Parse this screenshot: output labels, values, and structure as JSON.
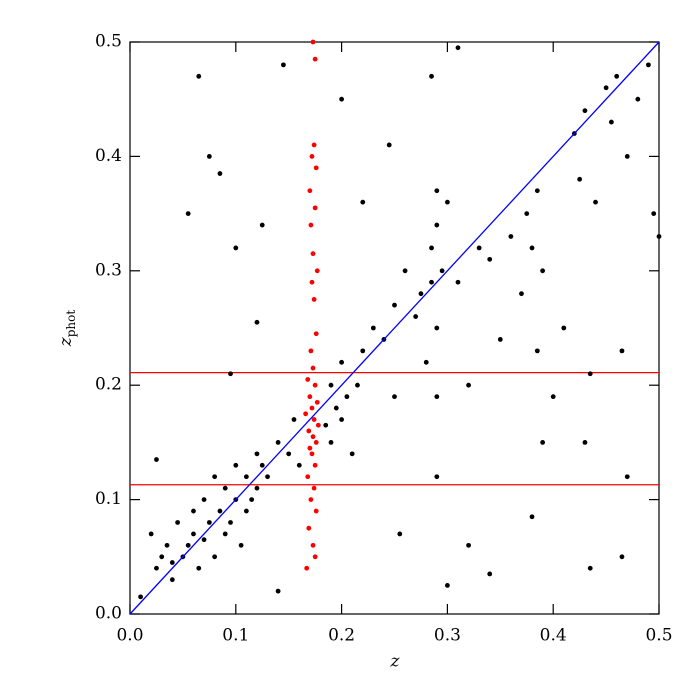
{
  "chart_data": {
    "type": "scatter",
    "xlabel": "z",
    "ylabel": "z",
    "ylabel_sub": "phot",
    "xlim": [
      0,
      0.5
    ],
    "ylim": [
      0,
      0.5
    ],
    "xticks": [
      {
        "value": 0,
        "label": "0.0"
      },
      0.1,
      0.2,
      0.3,
      0.4,
      0.5
    ],
    "yticks": [
      {
        "value": 0,
        "label": "0.0"
      },
      0.1,
      0.2,
      0.3,
      0.4,
      0.5
    ],
    "series": [
      {
        "color": "#000000",
        "x": [
          0.01,
          0.02,
          0.025,
          0.03,
          0.035,
          0.04,
          0.04,
          0.045,
          0.05,
          0.055,
          0.06,
          0.06,
          0.065,
          0.07,
          0.07,
          0.075,
          0.08,
          0.08,
          0.085,
          0.09,
          0.09,
          0.095,
          0.1,
          0.1,
          0.105,
          0.11,
          0.11,
          0.115,
          0.12,
          0.12,
          0.125,
          0.13,
          0.14,
          0.15,
          0.155,
          0.16,
          0.185,
          0.19,
          0.19,
          0.195,
          0.2,
          0.2,
          0.205,
          0.21,
          0.215,
          0.22,
          0.23,
          0.24,
          0.25,
          0.25,
          0.26,
          0.27,
          0.275,
          0.28,
          0.285,
          0.285,
          0.29,
          0.29,
          0.29,
          0.29,
          0.295,
          0.3,
          0.31,
          0.32,
          0.33,
          0.34,
          0.35,
          0.36,
          0.37,
          0.375,
          0.38,
          0.385,
          0.385,
          0.39,
          0.39,
          0.4,
          0.41,
          0.42,
          0.425,
          0.43,
          0.435,
          0.44,
          0.45,
          0.455,
          0.46,
          0.465,
          0.47,
          0.48,
          0.49,
          0.495,
          0.5,
          0.065,
          0.075,
          0.085,
          0.055,
          0.1,
          0.125,
          0.12,
          0.145,
          0.2,
          0.22,
          0.255,
          0.29,
          0.3,
          0.34,
          0.38,
          0.435,
          0.465,
          0.47,
          0.43,
          0.095,
          0.285,
          0.31,
          0.245,
          0.14,
          0.025,
          0.32
        ],
        "y": [
          0.015,
          0.07,
          0.04,
          0.05,
          0.06,
          0.03,
          0.045,
          0.08,
          0.05,
          0.06,
          0.07,
          0.09,
          0.04,
          0.065,
          0.1,
          0.08,
          0.05,
          0.12,
          0.09,
          0.07,
          0.11,
          0.08,
          0.1,
          0.13,
          0.06,
          0.09,
          0.12,
          0.1,
          0.11,
          0.14,
          0.13,
          0.12,
          0.15,
          0.14,
          0.17,
          0.13,
          0.165,
          0.2,
          0.15,
          0.18,
          0.17,
          0.22,
          0.19,
          0.14,
          0.2,
          0.23,
          0.25,
          0.24,
          0.19,
          0.27,
          0.3,
          0.26,
          0.28,
          0.22,
          0.29,
          0.32,
          0.34,
          0.37,
          0.25,
          0.19,
          0.3,
          0.36,
          0.29,
          0.2,
          0.32,
          0.31,
          0.24,
          0.33,
          0.28,
          0.35,
          0.32,
          0.37,
          0.23,
          0.3,
          0.15,
          0.19,
          0.25,
          0.42,
          0.38,
          0.44,
          0.21,
          0.36,
          0.46,
          0.43,
          0.47,
          0.23,
          0.4,
          0.45,
          0.48,
          0.35,
          0.33,
          0.47,
          0.4,
          0.385,
          0.35,
          0.32,
          0.34,
          0.255,
          0.48,
          0.45,
          0.36,
          0.07,
          0.12,
          0.025,
          0.035,
          0.085,
          0.04,
          0.05,
          0.12,
          0.15,
          0.21,
          0.47,
          0.495,
          0.41,
          0.02,
          0.135,
          0.06
        ]
      },
      {
        "color": "#ff0000",
        "x": [
          0.173,
          0.175,
          0.174,
          0.172,
          0.176,
          0.17,
          0.175,
          0.171,
          0.173,
          0.177,
          0.172,
          0.174,
          0.176,
          0.171,
          0.173,
          0.168,
          0.175,
          0.17,
          0.177,
          0.172,
          0.166,
          0.174,
          0.178,
          0.169,
          0.173,
          0.176,
          0.17,
          0.172,
          0.175,
          0.168,
          0.174,
          0.171,
          0.176,
          0.169,
          0.173,
          0.175,
          0.167
        ],
        "y": [
          0.5,
          0.485,
          0.41,
          0.4,
          0.39,
          0.37,
          0.355,
          0.34,
          0.315,
          0.3,
          0.29,
          0.275,
          0.245,
          0.23,
          0.215,
          0.205,
          0.2,
          0.19,
          0.185,
          0.18,
          0.175,
          0.17,
          0.165,
          0.16,
          0.155,
          0.15,
          0.145,
          0.14,
          0.13,
          0.12,
          0.11,
          0.1,
          0.09,
          0.075,
          0.06,
          0.05,
          0.04
        ]
      }
    ],
    "lines": [
      {
        "color": "#0000ff",
        "x": [
          0,
          0.5
        ],
        "y": [
          0,
          0.5
        ]
      }
    ],
    "hlines": [
      {
        "color": "#ff0000",
        "value": 0.211
      },
      {
        "color": "#ff0000",
        "value": 0.113
      }
    ]
  }
}
